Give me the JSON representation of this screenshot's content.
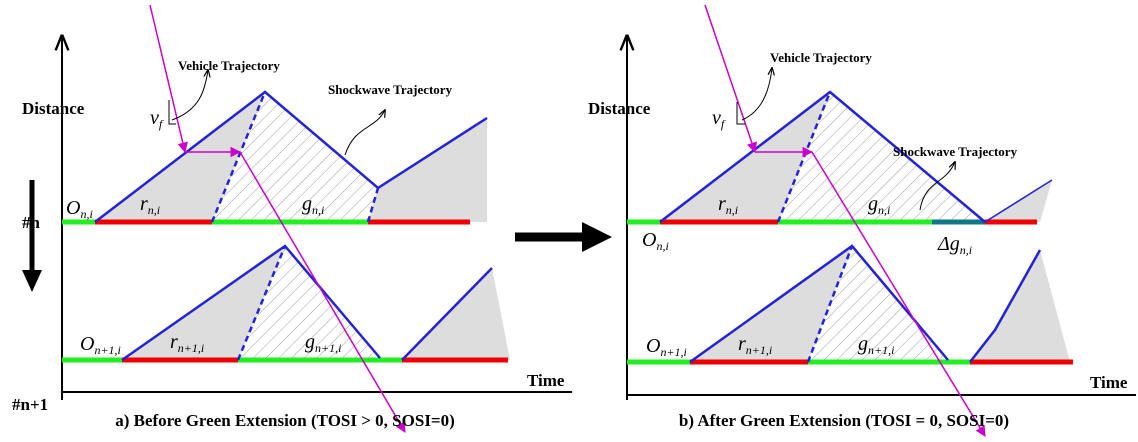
{
  "panel_a": {
    "caption": "a) Before Green Extension (TOSI > 0, SOSI=0)",
    "y_axis": "Distance",
    "x_axis": "Time",
    "vehicle": "Vehicle Trajectory",
    "shockwave": "Shockwave Trajectory",
    "approach_n": "#n",
    "approach_n1": "#n+1",
    "vf": {
      "base": "v",
      "sub": "f"
    },
    "o_n": {
      "base": "O",
      "sub": "n,i"
    },
    "r_n": {
      "base": "r",
      "sub": "n,i"
    },
    "g_n": {
      "base": "g",
      "sub": "n,i"
    },
    "o_n1": {
      "base": "O",
      "sub": "n+1,i"
    },
    "r_n1": {
      "base": "r",
      "sub": "n+1,i"
    },
    "g_n1": {
      "base": "g",
      "sub": "n+1,i"
    }
  },
  "panel_b": {
    "caption": "b) After Green Extension (TOSI = 0, SOSI=0)",
    "y_axis": "Distance",
    "x_axis": "Time",
    "vehicle": "Vehicle Trajectory",
    "shockwave": "Shockwave Trajectory",
    "vf": {
      "base": "v",
      "sub": "f"
    },
    "o_n": {
      "base": "O",
      "sub": "n,i"
    },
    "r_n": {
      "base": "r",
      "sub": "n,i"
    },
    "g_n": {
      "base": "g",
      "sub": "n,i"
    },
    "delta_g": {
      "base": "Δg",
      "sub": "n,i"
    },
    "o_n1": {
      "base": "O",
      "sub": "n+1,i"
    },
    "r_n1": {
      "base": "r",
      "sub": "n+1,i"
    },
    "g_n1": {
      "base": "g",
      "sub": "n+1,i"
    }
  }
}
